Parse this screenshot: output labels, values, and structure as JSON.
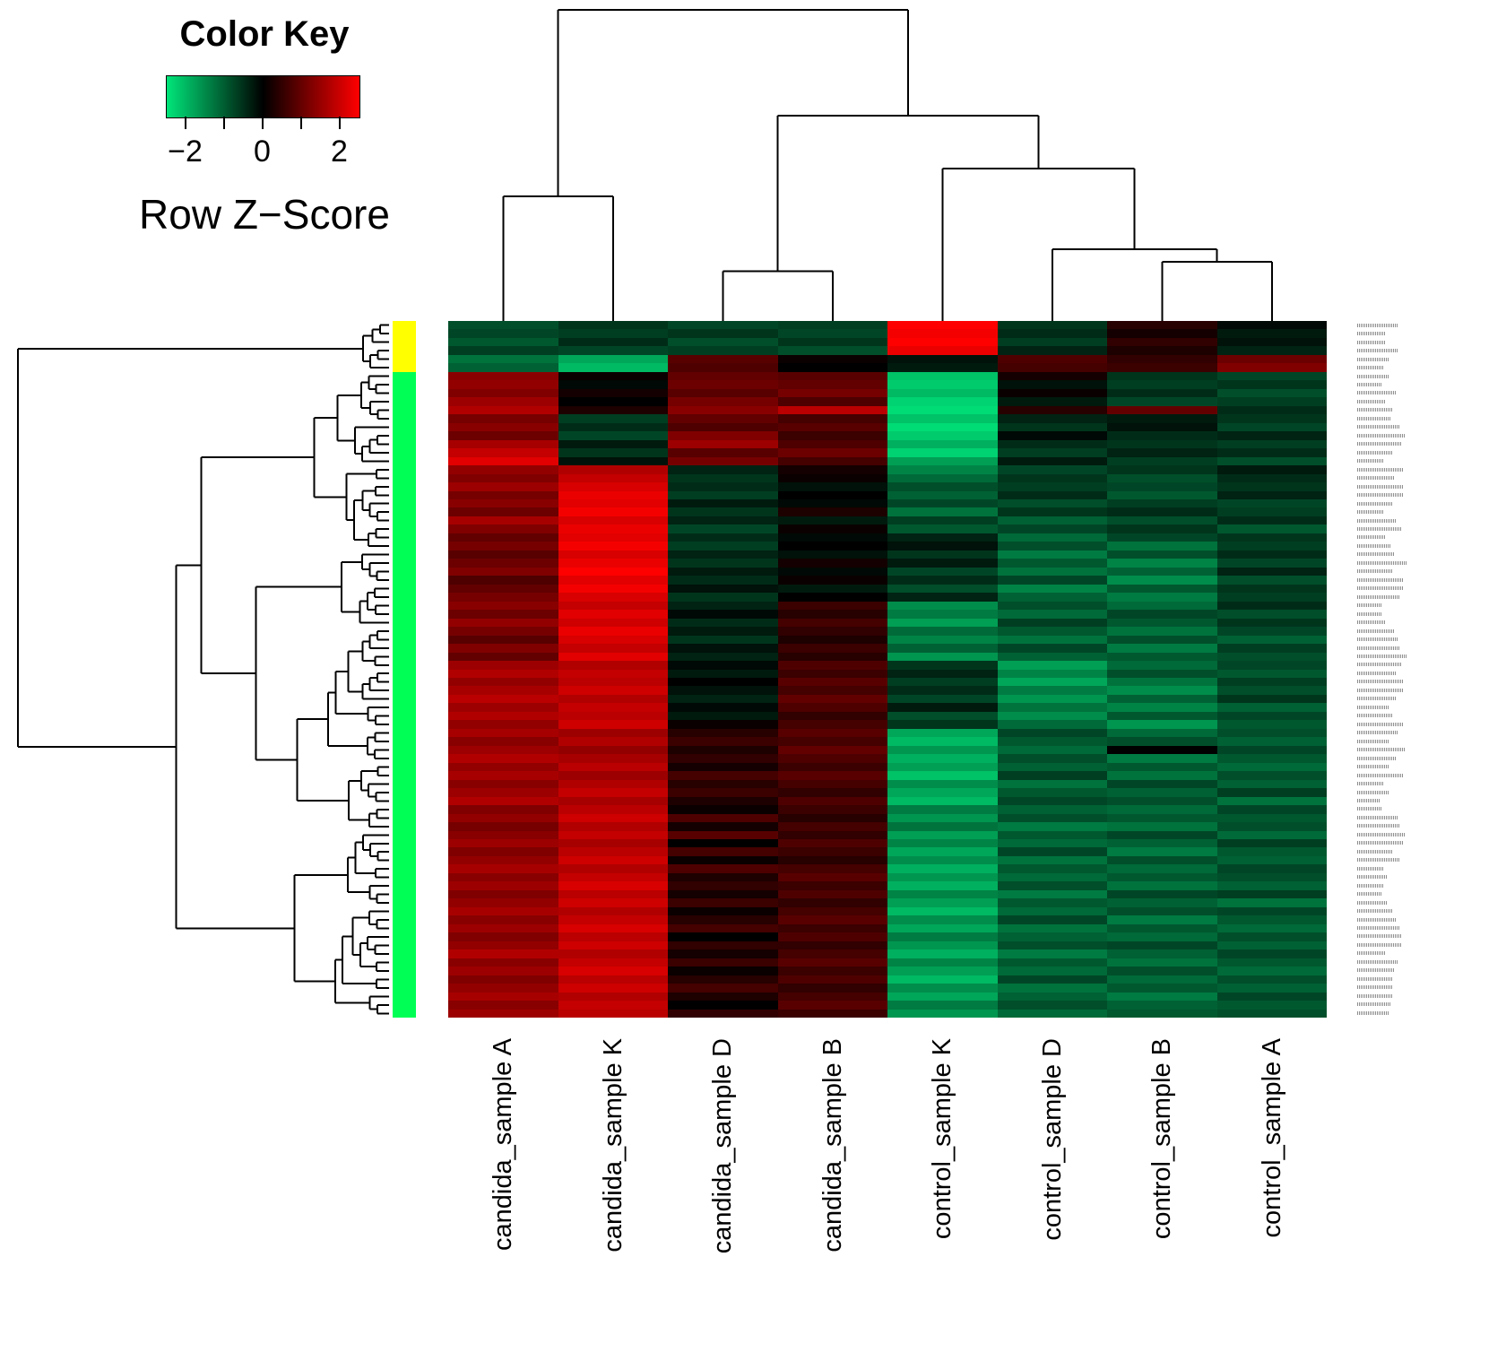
{
  "color_key": {
    "title": "Color Key",
    "label": "Row Z−Score",
    "tick_labels": [
      "−2",
      "0",
      "2"
    ],
    "all_ticks": [
      -2,
      -1,
      0,
      1,
      2
    ],
    "range": [
      -2.5,
      2.5
    ],
    "gradient_left": "#00E57A",
    "gradient_mid": "#000000",
    "gradient_right": "#FF0000"
  },
  "chart_data": {
    "type": "heatmap",
    "title": "",
    "value_name": "Row Z-Score",
    "value_range": [
      -2.6,
      2.6
    ],
    "colormap": [
      "#00E57A",
      "#000000",
      "#FF0000"
    ],
    "columns": [
      "candida_sample A",
      "candida_sample K",
      "candida_sample D",
      "candida_sample B",
      "control_sample K",
      "control_sample D",
      "control_sample B",
      "control_sample A"
    ],
    "row_labels": "illegible micro-print gene identifiers in right margin",
    "row_side_colors": [
      {
        "color": "#FFFF00",
        "count": 6
      },
      {
        "color": "#00FF55",
        "count": 76
      }
    ],
    "column_dendrogram": {
      "h": 1.0,
      "l": {
        "h": 0.4,
        "l": 0,
        "r": 1
      },
      "r": {
        "h": 0.66,
        "l": {
          "h": 0.16,
          "l": 2,
          "r": 3
        },
        "r": {
          "h": 0.49,
          "l": 4,
          "r": {
            "h": 0.23,
            "l": 5,
            "r": {
              "h": 0.19,
              "l": 6,
              "r": 7
            }
          }
        }
      }
    },
    "row_dendrogram": "hierarchical clustering of rows shown at left (approximate shape)",
    "rows": [
      [
        -0.9,
        -0.6,
        -0.8,
        -0.7,
        2.6,
        -0.6,
        0.4,
        -0.1
      ],
      [
        -0.8,
        -0.7,
        -0.6,
        -0.8,
        2.5,
        -0.5,
        0.2,
        -0.3
      ],
      [
        -1.0,
        -0.5,
        -0.9,
        -0.6,
        2.6,
        -0.7,
        0.5,
        -0.2
      ],
      [
        -0.7,
        -0.8,
        -0.7,
        -0.9,
        2.4,
        -0.4,
        0.3,
        -0.4
      ],
      [
        -1.3,
        -1.9,
        0.9,
        0.1,
        -0.2,
        0.8,
        0.5,
        1.1
      ],
      [
        -1.1,
        -2.1,
        0.8,
        0.0,
        -0.3,
        0.7,
        0.6,
        1.3
      ],
      [
        1.4,
        0.1,
        1.0,
        0.9,
        -2.2,
        0.2,
        -0.6,
        -0.8
      ],
      [
        1.5,
        -0.1,
        1.1,
        1.0,
        -2.3,
        -0.2,
        -0.7,
        -0.6
      ],
      [
        1.3,
        0.2,
        0.9,
        1.2,
        -2.1,
        0.1,
        -0.5,
        -0.9
      ],
      [
        1.6,
        0.0,
        1.2,
        0.8,
        -2.4,
        -0.3,
        -0.8,
        -0.7
      ],
      [
        1.8,
        0.3,
        1.4,
        1.9,
        -2.5,
        0.4,
        1.0,
        -0.5
      ],
      [
        1.2,
        -0.7,
        1.0,
        0.7,
        -2.2,
        -0.4,
        -0.3,
        -0.6
      ],
      [
        1.4,
        -0.5,
        0.8,
        0.9,
        -2.5,
        -0.6,
        -0.2,
        -0.8
      ],
      [
        1.1,
        -0.8,
        1.3,
        0.6,
        -2.3,
        -0.1,
        -0.5,
        -0.4
      ],
      [
        1.7,
        -0.3,
        1.6,
        0.8,
        -2.0,
        -0.5,
        -0.6,
        -0.7
      ],
      [
        2.0,
        -0.6,
        0.9,
        1.1,
        -2.4,
        -0.7,
        -0.4,
        -0.5
      ],
      [
        2.3,
        -0.2,
        1.2,
        0.7,
        -1.8,
        -0.3,
        -0.7,
        -0.9
      ],
      [
        1.5,
        1.8,
        -0.4,
        0.2,
        -1.5,
        -0.8,
        -0.6,
        -0.3
      ],
      [
        1.3,
        2.0,
        -0.6,
        0.1,
        -1.2,
        -0.6,
        -0.9,
        -0.5
      ],
      [
        1.6,
        2.2,
        -0.5,
        -0.2,
        -0.9,
        -0.7,
        -0.8,
        -0.6
      ],
      [
        1.2,
        2.4,
        -0.7,
        0.0,
        -1.1,
        -0.5,
        -1.0,
        -0.4
      ],
      [
        1.4,
        2.3,
        -0.3,
        -0.1,
        -0.8,
        -0.9,
        -0.7,
        -0.8
      ],
      [
        1.1,
        2.5,
        -0.6,
        0.3,
        -1.3,
        -0.6,
        -0.5,
        -0.7
      ],
      [
        1.7,
        2.2,
        -0.4,
        -0.3,
        -0.7,
        -1.1,
        -0.9,
        -0.5
      ],
      [
        1.3,
        2.4,
        -0.8,
        0.1,
        -1.0,
        -0.8,
        -0.6,
        -1.0
      ],
      [
        1.0,
        2.3,
        -0.5,
        -0.1,
        -0.4,
        -1.2,
        -0.8,
        -0.6
      ],
      [
        1.2,
        2.5,
        -0.7,
        0.0,
        -0.2,
        -0.9,
        -1.3,
        -0.7
      ],
      [
        0.9,
        2.2,
        -0.4,
        -0.2,
        -0.6,
        -1.4,
        -0.9,
        -0.5
      ],
      [
        1.1,
        2.4,
        -0.6,
        0.2,
        -0.3,
        -1.0,
        -1.5,
        -0.8
      ],
      [
        1.3,
        2.6,
        -0.3,
        -0.1,
        -0.8,
        -1.3,
        -1.1,
        -0.4
      ],
      [
        0.8,
        2.3,
        -0.5,
        0.1,
        -0.5,
        -0.8,
        -1.6,
        -0.9
      ],
      [
        1.0,
        2.5,
        -0.2,
        -0.3,
        -0.9,
        -1.5,
        -1.0,
        -0.6
      ],
      [
        1.2,
        2.2,
        -0.6,
        0.0,
        -0.4,
        -1.1,
        -1.4,
        -0.7
      ],
      [
        1.4,
        2.0,
        -0.4,
        0.6,
        -1.6,
        -0.9,
        -1.2,
        -0.5
      ],
      [
        1.1,
        2.3,
        -0.1,
        0.4,
        -1.4,
        -1.2,
        -0.8,
        -0.9
      ],
      [
        1.5,
        2.1,
        -0.5,
        0.7,
        -1.8,
        -0.7,
        -1.0,
        -0.6
      ],
      [
        1.2,
        2.4,
        -0.3,
        0.5,
        -1.2,
        -1.0,
        -1.3,
        -0.8
      ],
      [
        0.9,
        2.2,
        -0.6,
        0.3,
        -1.5,
        -1.3,
        -0.9,
        -1.1
      ],
      [
        1.3,
        2.0,
        -0.2,
        0.6,
        -1.1,
        -0.8,
        -1.4,
        -0.7
      ],
      [
        1.0,
        2.3,
        -0.4,
        0.4,
        -1.7,
        -1.1,
        -1.0,
        -0.9
      ],
      [
        1.6,
        1.8,
        -0.1,
        0.8,
        -0.6,
        -1.8,
        -1.2,
        -0.8
      ],
      [
        1.8,
        2.0,
        -0.3,
        0.6,
        -0.4,
        -1.5,
        -0.9,
        -1.0
      ],
      [
        1.5,
        1.9,
        0.0,
        0.9,
        -0.7,
        -1.9,
        -1.3,
        -0.7
      ],
      [
        1.7,
        2.1,
        -0.2,
        0.7,
        -0.5,
        -1.4,
        -1.6,
        -0.9
      ],
      [
        1.9,
        1.8,
        -0.4,
        1.0,
        -0.8,
        -1.7,
        -1.1,
        -0.6
      ],
      [
        1.6,
        2.0,
        -0.1,
        0.8,
        -0.3,
        -1.3,
        -1.5,
        -1.1
      ],
      [
        1.8,
        1.9,
        -0.3,
        0.5,
        -0.9,
        -1.6,
        -1.0,
        -0.8
      ],
      [
        1.5,
        2.1,
        0.1,
        0.7,
        -0.6,
        -1.2,
        -1.7,
        -1.0
      ],
      [
        1.7,
        1.6,
        0.4,
        0.9,
        -1.9,
        -0.8,
        -1.2,
        -0.9
      ],
      [
        1.4,
        1.8,
        0.6,
        0.7,
        -2.1,
        -1.0,
        -0.9,
        -1.1
      ],
      [
        1.6,
        1.5,
        0.3,
        1.0,
        -1.7,
        -1.2,
        0.0,
        -0.8
      ],
      [
        1.8,
        1.7,
        0.5,
        0.8,
        -2.0,
        -0.9,
        -1.4,
        -1.0
      ],
      [
        1.5,
        1.9,
        0.2,
        0.6,
        -1.8,
        -1.1,
        -1.0,
        -1.2
      ],
      [
        1.7,
        1.6,
        0.7,
        0.9,
        -2.2,
        -0.7,
        -1.3,
        -0.9
      ],
      [
        1.4,
        1.8,
        0.4,
        0.7,
        -1.6,
        -1.3,
        -0.8,
        -1.1
      ],
      [
        1.6,
        2.0,
        0.6,
        0.5,
        -1.9,
        -1.0,
        -1.1,
        -0.7
      ],
      [
        1.8,
        1.7,
        0.3,
        0.8,
        -2.1,
        -0.8,
        -0.9,
        -1.3
      ],
      [
        1.3,
        1.9,
        0.1,
        0.6,
        -1.4,
        -1.1,
        -1.2,
        -0.8
      ],
      [
        1.5,
        2.1,
        0.8,
        0.4,
        -1.7,
        -0.9,
        -1.0,
        -1.0
      ],
      [
        1.2,
        1.8,
        0.2,
        0.7,
        -1.3,
        -1.4,
        -1.3,
        -0.9
      ],
      [
        1.4,
        2.0,
        0.9,
        0.5,
        -1.8,
        -1.0,
        -0.8,
        -1.2
      ],
      [
        1.6,
        1.7,
        0.0,
        0.8,
        -1.5,
        -1.2,
        -1.1,
        -0.7
      ],
      [
        1.3,
        1.9,
        0.7,
        0.6,
        -1.9,
        -0.8,
        -1.4,
        -1.0
      ],
      [
        1.5,
        2.1,
        0.1,
        0.4,
        -1.6,
        -1.3,
        -0.9,
        -1.1
      ],
      [
        1.7,
        1.8,
        0.8,
        0.7,
        -2.0,
        -1.0,
        -1.2,
        -0.8
      ],
      [
        1.4,
        2.0,
        0.3,
        0.9,
        -1.7,
        -1.2,
        -1.0,
        -0.9
      ],
      [
        1.6,
        2.2,
        0.5,
        0.6,
        -2.0,
        -0.9,
        -1.3,
        -1.1
      ],
      [
        1.3,
        1.9,
        0.2,
        0.8,
        -1.5,
        -1.4,
        -0.8,
        -0.7
      ],
      [
        1.5,
        2.1,
        0.6,
        0.5,
        -1.8,
        -1.0,
        -1.1,
        -1.3
      ],
      [
        1.7,
        1.8,
        0.1,
        0.7,
        -2.1,
        -1.2,
        -0.9,
        -0.8
      ],
      [
        1.4,
        2.0,
        0.4,
        0.9,
        -1.6,
        -0.8,
        -1.4,
        -1.0
      ],
      [
        1.6,
        2.2,
        0.7,
        0.6,
        -1.9,
        -1.3,
        -1.0,
        -1.2
      ],
      [
        1.3,
        1.9,
        0.0,
        0.8,
        -1.4,
        -1.1,
        -1.2,
        -0.9
      ],
      [
        1.5,
        2.1,
        0.5,
        0.5,
        -1.7,
        -0.9,
        -0.8,
        -1.1
      ],
      [
        1.8,
        1.8,
        0.2,
        0.7,
        -2.0,
        -1.4,
        -1.1,
        -0.8
      ],
      [
        1.4,
        2.0,
        0.6,
        0.9,
        -1.5,
        -1.0,
        -1.3,
        -1.0
      ],
      [
        1.6,
        2.2,
        0.1,
        0.6,
        -1.8,
        -1.2,
        -0.9,
        -1.2
      ],
      [
        1.3,
        1.9,
        0.4,
        0.8,
        -2.1,
        -0.8,
        -1.2,
        -0.9
      ],
      [
        1.5,
        2.1,
        0.7,
        0.5,
        -1.6,
        -1.3,
        -1.0,
        -1.1
      ],
      [
        1.7,
        1.8,
        0.3,
        0.7,
        -1.9,
        -1.1,
        -1.4,
        -0.8
      ],
      [
        1.4,
        2.0,
        0.0,
        0.9,
        -1.4,
        -0.9,
        -1.1,
        -1.0
      ],
      [
        1.6,
        1.9,
        0.5,
        0.6,
        -1.7,
        -1.2,
        -1.0,
        -0.9
      ]
    ]
  }
}
